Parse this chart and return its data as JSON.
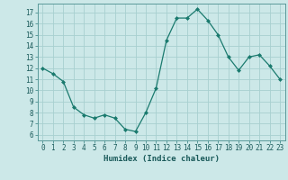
{
  "x": [
    0,
    1,
    2,
    3,
    4,
    5,
    6,
    7,
    8,
    9,
    10,
    11,
    12,
    13,
    14,
    15,
    16,
    17,
    18,
    19,
    20,
    21,
    22,
    23
  ],
  "y": [
    12,
    11.5,
    10.8,
    8.5,
    7.8,
    7.5,
    7.8,
    7.5,
    6.5,
    6.3,
    8.0,
    10.2,
    14.5,
    16.5,
    16.5,
    17.3,
    16.3,
    15.0,
    13.0,
    11.8,
    13.0,
    13.2,
    12.2,
    11.0
  ],
  "line_color": "#1a7a6e",
  "marker": "D",
  "marker_size": 2,
  "bg_color": "#cce8e8",
  "grid_color": "#a8d0d0",
  "xlabel": "Humidex (Indice chaleur)",
  "xlim": [
    -0.5,
    23.5
  ],
  "ylim": [
    5.5,
    17.8
  ],
  "yticks": [
    6,
    7,
    8,
    9,
    10,
    11,
    12,
    13,
    14,
    15,
    16,
    17
  ],
  "xticks": [
    0,
    1,
    2,
    3,
    4,
    5,
    6,
    7,
    8,
    9,
    10,
    11,
    12,
    13,
    14,
    15,
    16,
    17,
    18,
    19,
    20,
    21,
    22,
    23
  ],
  "xtick_labels": [
    "0",
    "1",
    "2",
    "3",
    "4",
    "5",
    "6",
    "7",
    "8",
    "9",
    "10",
    "11",
    "12",
    "13",
    "14",
    "15",
    "16",
    "17",
    "18",
    "19",
    "20",
    "21",
    "22",
    "23"
  ],
  "label_fontsize": 6.5,
  "tick_fontsize": 5.5
}
